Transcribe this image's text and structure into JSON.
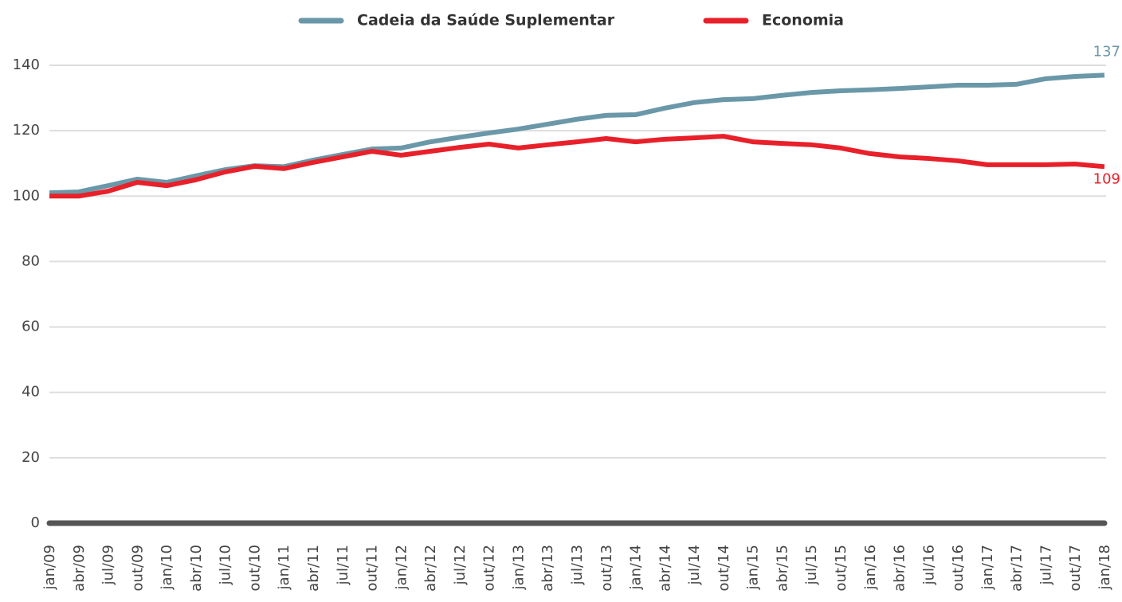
{
  "chart_data": {
    "type": "line",
    "categories": [
      "jan/09",
      "abr/09",
      "jul/09",
      "out/09",
      "jan/10",
      "abr/10",
      "jul/10",
      "out/10",
      "jan/11",
      "abr/11",
      "jul/11",
      "out/11",
      "jan/12",
      "abr/12",
      "jul/12",
      "out/12",
      "jan/13",
      "abr/13",
      "jul/13",
      "out/13",
      "jan/14",
      "abr/14",
      "jul/14",
      "out/14",
      "jan/15",
      "abr/15",
      "jul/15",
      "out/15",
      "jan/16",
      "abr/16",
      "jul/16",
      "out/16",
      "jan/17",
      "abr/17",
      "jul/17",
      "out/17",
      "jan/18"
    ],
    "series": [
      {
        "name": "Cadeia da Saúde Suplementar",
        "color": "#6a98a8",
        "values": [
          101,
          101.3,
          103.2,
          105.2,
          104.2,
          106.2,
          108.1,
          109.3,
          109,
          111,
          112.7,
          114.4,
          114.7,
          116.6,
          118,
          119.3,
          120.5,
          122,
          123.5,
          124.7,
          124.9,
          126.9,
          128.6,
          129.5,
          129.8,
          130.8,
          131.7,
          132.2,
          132.5,
          132.9,
          133.4,
          133.9,
          133.9,
          134.2,
          135.9,
          136.6,
          137
        ]
      },
      {
        "name": "Economia",
        "color": "#e8202a",
        "values": [
          100,
          100,
          101.5,
          104.2,
          103.2,
          105,
          107.4,
          109.1,
          108.4,
          110.3,
          112,
          113.7,
          112.5,
          113.7,
          114.9,
          115.9,
          114.7,
          115.7,
          116.6,
          117.6,
          116.6,
          117.4,
          117.8,
          118.3,
          116.6,
          116.1,
          115.7,
          114.7,
          113,
          112,
          111.5,
          110.8,
          109.6,
          109.6,
          109.6,
          109.8,
          109
        ]
      }
    ],
    "ylim": [
      0,
      140
    ],
    "yticks": [
      0,
      20,
      40,
      60,
      80,
      100,
      120,
      140
    ],
    "grid": true
  }
}
